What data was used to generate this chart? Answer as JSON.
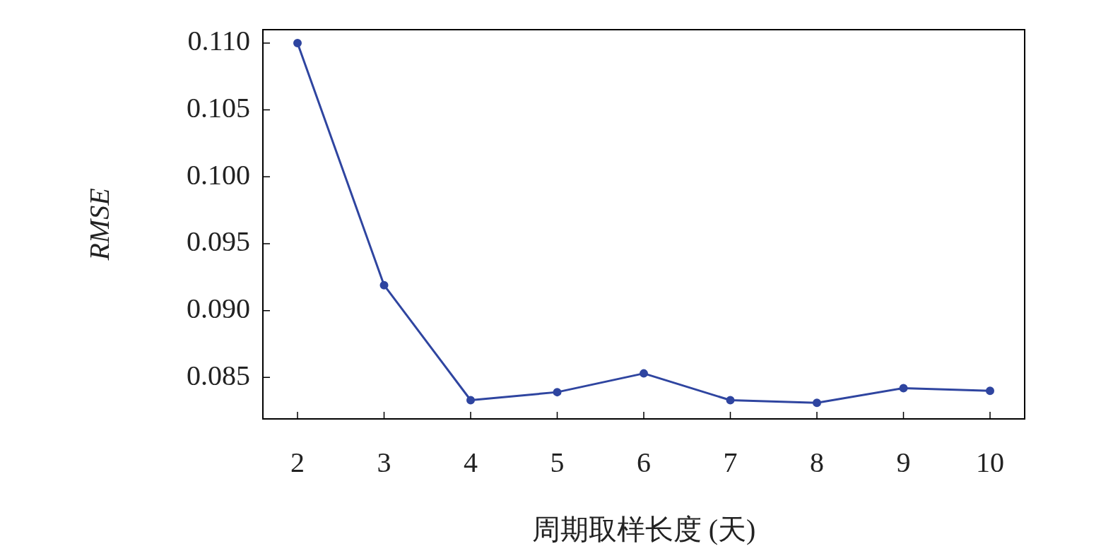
{
  "chart_data": {
    "type": "line",
    "xlabel": "周期取样长度 (天)",
    "ylabel": "RMSE",
    "x": [
      2,
      3,
      4,
      5,
      6,
      7,
      8,
      9,
      10
    ],
    "series": [
      {
        "color": "#2f45a0",
        "values": [
          0.11,
          0.0919,
          0.0833,
          0.0839,
          0.0853,
          0.0833,
          0.0831,
          0.0842,
          0.084
        ]
      }
    ],
    "xlim": [
      1.6,
      10.4
    ],
    "xticks": [
      2,
      3,
      4,
      5,
      6,
      7,
      8,
      9,
      10
    ],
    "ylim": [
      0.0819,
      0.111
    ],
    "yticks": [
      {
        "value": 0.085,
        "label": "0.085"
      },
      {
        "value": 0.09,
        "label": "0.090"
      },
      {
        "value": 0.095,
        "label": "0.095"
      },
      {
        "value": 0.1,
        "label": "0.100"
      },
      {
        "value": 0.105,
        "label": "0.105"
      },
      {
        "value": 0.11,
        "label": "0.110"
      }
    ],
    "grid": false,
    "legend": false,
    "marker": "circle",
    "line_style": "solid"
  }
}
